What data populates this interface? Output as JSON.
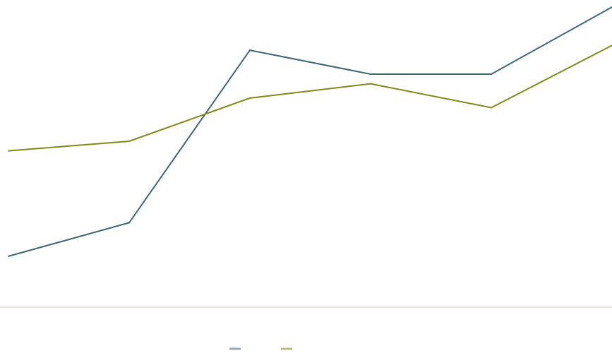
{
  "chart_data": {
    "type": "line",
    "x": [
      1,
      2,
      3,
      4,
      5,
      6
    ],
    "categories": [
      "",
      "",
      "",
      "",
      "",
      ""
    ],
    "series": [
      {
        "color": "#3f6673",
        "values": [
          1.4,
          2.1,
          5.7,
          5.2,
          5.2,
          6.6
        ]
      },
      {
        "color": "#7f8a18",
        "values": [
          3.6,
          3.8,
          4.7,
          5.0,
          4.5,
          5.8
        ]
      }
    ],
    "ylim": [
      1,
      6.6
    ],
    "grid": false,
    "legend": "bottom"
  }
}
